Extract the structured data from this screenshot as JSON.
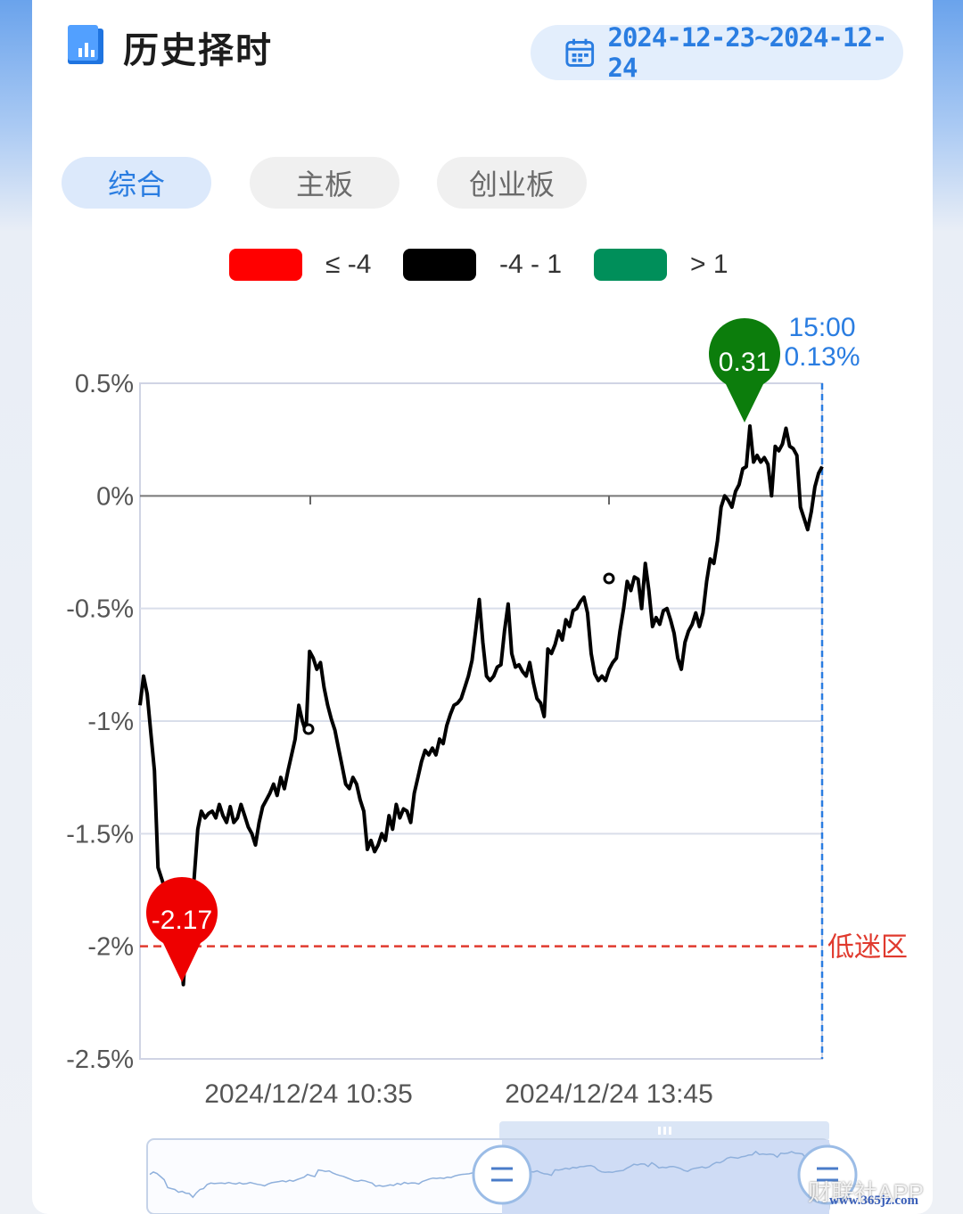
{
  "header": {
    "title": "历史择时",
    "date_range": "2024-12-23~2024-12-24"
  },
  "tabs": [
    {
      "label": "综合",
      "active": true
    },
    {
      "label": "主板",
      "active": false
    },
    {
      "label": "创业板",
      "active": false
    }
  ],
  "legend": [
    {
      "label": "≤ -4",
      "color": "#ff0000"
    },
    {
      "label": "-4 - 1",
      "color": "#000000"
    },
    {
      "label": "> 1",
      "color": "#008f5a"
    }
  ],
  "chart_data": {
    "type": "line",
    "y_ticks": [
      "0.5%",
      "0%",
      "-0.5%",
      "-1%",
      "-1.5%",
      "-2%",
      "-2.5%"
    ],
    "ylim": [
      -2.5,
      0.5
    ],
    "x_tick_labels": [
      "2024/12/24 10:35",
      "2024/12/24 13:45"
    ],
    "grid": true,
    "threshold": {
      "value": -2,
      "label": "低迷区",
      "color": "#e03a2e"
    },
    "cursor": {
      "time": "15:00",
      "value": "0.13%"
    },
    "min_marker": {
      "label": "-2.17",
      "value": -2.17,
      "color": "#ee0000"
    },
    "max_marker": {
      "label": "0.31",
      "value": 0.31,
      "color": "#0c7d0c"
    },
    "series": [
      {
        "color": "#000000",
        "values": [
          -0.93,
          -0.8,
          -0.88,
          -1.05,
          -1.22,
          -1.65,
          -1.7,
          -1.75,
          -1.9,
          -1.85,
          -1.95,
          -1.97,
          -2.17,
          -1.93,
          -1.75,
          -1.7,
          -1.48,
          -1.4,
          -1.43,
          -1.41,
          -1.4,
          -1.43,
          -1.37,
          -1.42,
          -1.45,
          -1.38,
          -1.45,
          -1.43,
          -1.37,
          -1.42,
          -1.47,
          -1.5,
          -1.55,
          -1.45,
          -1.38,
          -1.35,
          -1.32,
          -1.28,
          -1.33,
          -1.25,
          -1.3,
          -1.22,
          -1.15,
          -1.08,
          -0.93,
          -1.0,
          -1.05,
          -0.69,
          -0.72,
          -0.77,
          -0.74,
          -0.85,
          -0.93,
          -0.99,
          -1.04,
          -1.12,
          -1.2,
          -1.28,
          -1.3,
          -1.25,
          -1.28,
          -1.35,
          -1.4,
          -1.57,
          -1.53,
          -1.58,
          -1.55,
          -1.5,
          -1.53,
          -1.42,
          -1.48,
          -1.37,
          -1.43,
          -1.39,
          -1.4,
          -1.45,
          -1.32,
          -1.25,
          -1.18,
          -1.13,
          -1.15,
          -1.12,
          -1.15,
          -1.08,
          -1.1,
          -1.02,
          -0.97,
          -0.93,
          -0.92,
          -0.9,
          -0.85,
          -0.8,
          -0.73,
          -0.6,
          -0.46,
          -0.65,
          -0.8,
          -0.82,
          -0.8,
          -0.76,
          -0.75,
          -0.6,
          -0.48,
          -0.7,
          -0.76,
          -0.75,
          -0.78,
          -0.8,
          -0.74,
          -0.83,
          -0.9,
          -0.92,
          -0.98,
          -0.68,
          -0.7,
          -0.66,
          -0.6,
          -0.64,
          -0.55,
          -0.58,
          -0.51,
          -0.5,
          -0.47,
          -0.45,
          -0.52,
          -0.7,
          -0.79,
          -0.82,
          -0.8,
          -0.82,
          -0.77,
          -0.74,
          -0.72,
          -0.6,
          -0.5,
          -0.38,
          -0.42,
          -0.36,
          -0.37,
          -0.5,
          -0.3,
          -0.42,
          -0.58,
          -0.54,
          -0.57,
          -0.51,
          -0.5,
          -0.55,
          -0.61,
          -0.72,
          -0.77,
          -0.65,
          -0.6,
          -0.57,
          -0.52,
          -0.58,
          -0.52,
          -0.38,
          -0.28,
          -0.3,
          -0.2,
          -0.05,
          0.0,
          -0.02,
          -0.05,
          0.02,
          0.05,
          0.12,
          0.13,
          0.31,
          0.15,
          0.18,
          0.15,
          0.17,
          0.14,
          0.0,
          0.22,
          0.2,
          0.23,
          0.3,
          0.22,
          0.21,
          0.18,
          -0.05,
          -0.1,
          -0.15,
          -0.07,
          0.04,
          0.1,
          0.13
        ]
      }
    ]
  },
  "watermark": "财联社APP",
  "watermark_url": "www.365jz.com"
}
